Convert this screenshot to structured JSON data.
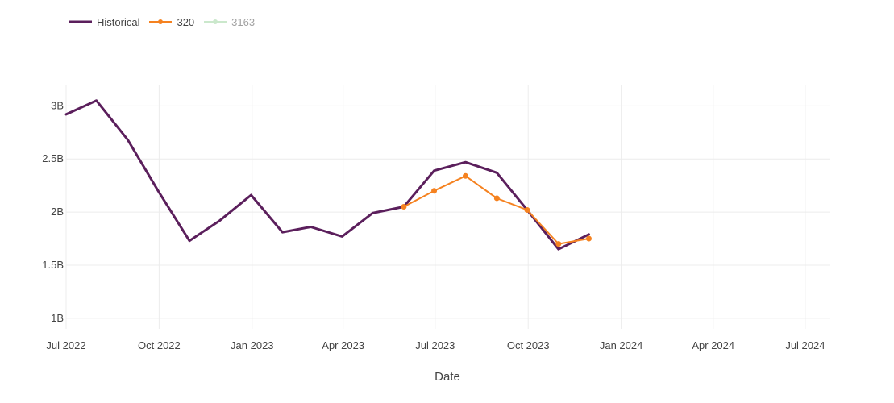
{
  "chart_data": {
    "type": "line",
    "xlabel": "Date",
    "ylabel": "",
    "x_axis_type": "date",
    "xlim": [
      "2022-07-01",
      "2024-07-25"
    ],
    "ylim": [
      0.9,
      3.2
    ],
    "y_unit_suffix": "B",
    "x_ticks": [
      {
        "value": "2022-07-01",
        "label": "Jul 2022"
      },
      {
        "value": "2022-10-01",
        "label": "Oct 2022"
      },
      {
        "value": "2023-01-01",
        "label": "Jan 2023"
      },
      {
        "value": "2023-04-01",
        "label": "Apr 2023"
      },
      {
        "value": "2023-07-01",
        "label": "Jul 2023"
      },
      {
        "value": "2023-10-01",
        "label": "Oct 2023"
      },
      {
        "value": "2024-01-01",
        "label": "Jan 2024"
      },
      {
        "value": "2024-04-01",
        "label": "Apr 2024"
      },
      {
        "value": "2024-07-01",
        "label": "Jul 2024"
      }
    ],
    "y_ticks": [
      {
        "value": 1,
        "label": "1B"
      },
      {
        "value": 1.5,
        "label": "1.5B"
      },
      {
        "value": 2,
        "label": "2B"
      },
      {
        "value": 2.5,
        "label": "2.5B"
      },
      {
        "value": 3,
        "label": "3B"
      }
    ],
    "grid": true,
    "legend_position": "top-left",
    "series": [
      {
        "name": "Historical",
        "color": "#5b1f5c",
        "mode": "lines",
        "visible": true,
        "points": [
          {
            "x": "2022-07-01",
            "y": 2.92
          },
          {
            "x": "2022-07-31",
            "y": 3.05
          },
          {
            "x": "2022-08-31",
            "y": 2.68
          },
          {
            "x": "2022-09-30",
            "y": 2.2
          },
          {
            "x": "2022-10-31",
            "y": 1.73
          },
          {
            "x": "2022-11-30",
            "y": 1.92
          },
          {
            "x": "2022-12-31",
            "y": 2.16
          },
          {
            "x": "2023-01-31",
            "y": 1.81
          },
          {
            "x": "2023-02-28",
            "y": 1.86
          },
          {
            "x": "2023-03-31",
            "y": 1.77
          },
          {
            "x": "2023-04-30",
            "y": 1.99
          },
          {
            "x": "2023-05-31",
            "y": 2.05
          },
          {
            "x": "2023-06-30",
            "y": 2.39
          },
          {
            "x": "2023-07-31",
            "y": 2.47
          },
          {
            "x": "2023-08-31",
            "y": 2.37
          },
          {
            "x": "2023-09-30",
            "y": 2.02
          },
          {
            "x": "2023-10-31",
            "y": 1.65
          },
          {
            "x": "2023-11-30",
            "y": 1.79
          }
        ]
      },
      {
        "name": "320",
        "color": "#f58220",
        "mode": "lines+markers",
        "visible": true,
        "points": [
          {
            "x": "2023-05-31",
            "y": 2.05
          },
          {
            "x": "2023-06-30",
            "y": 2.2
          },
          {
            "x": "2023-07-31",
            "y": 2.34
          },
          {
            "x": "2023-08-31",
            "y": 2.13
          },
          {
            "x": "2023-09-30",
            "y": 2.02
          },
          {
            "x": "2023-10-31",
            "y": 1.7
          },
          {
            "x": "2023-11-30",
            "y": 1.75
          }
        ]
      },
      {
        "name": "3163",
        "color": "#98d29a",
        "mode": "lines+markers",
        "visible": false,
        "points": []
      }
    ]
  }
}
